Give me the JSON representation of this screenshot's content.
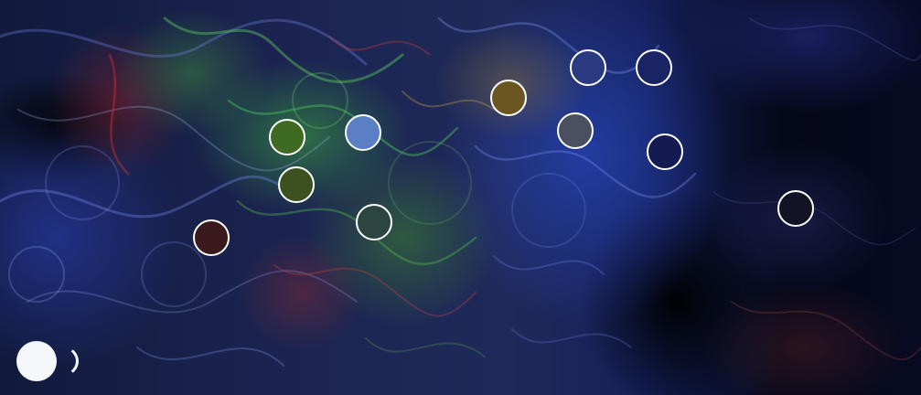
{
  "nodes": [
    {
      "name": "node-olive-green",
      "color": "#3e6a22"
    },
    {
      "name": "node-light-blue",
      "color": "#5a7fc4"
    },
    {
      "name": "node-dark-olive",
      "color": "#3c5020"
    },
    {
      "name": "node-dark-teal",
      "color": "#2c4540"
    },
    {
      "name": "node-dark-red",
      "color": "#3a1a1c"
    },
    {
      "name": "node-gold",
      "color": "#6b5520"
    },
    {
      "name": "node-grey-slate",
      "color": "#4a5060"
    },
    {
      "name": "node-royal-blue",
      "color": "#2a3a80"
    },
    {
      "name": "node-navy",
      "color": "#1a2464"
    },
    {
      "name": "node-dark-navy",
      "color": "#141a52"
    },
    {
      "name": "node-near-black",
      "color": "#121426"
    }
  ],
  "toggle": {
    "icon": "circle-toggle-icon",
    "color": "#f5f6fa"
  }
}
